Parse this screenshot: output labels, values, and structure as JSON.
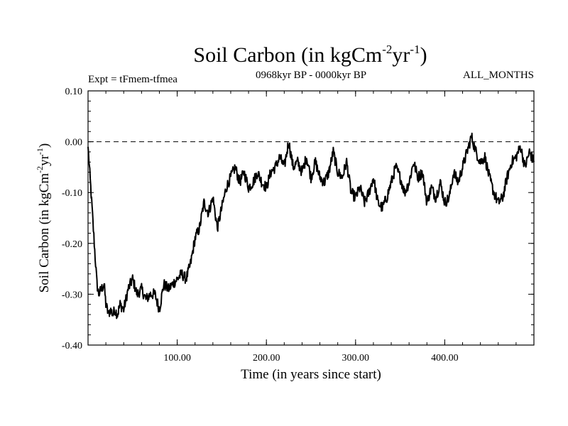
{
  "chart_data": {
    "type": "line",
    "title": {
      "main": "Soil Carbon (in kgCm",
      "exp1": "-2",
      "mid": "yr",
      "exp2": "-1",
      "close": ")"
    },
    "subtitle_left": "Expt = tFmem-tfmea",
    "subtitle_center": "0968kyr BP - 0000kyr BP",
    "subtitle_right": "ALL_MONTHS",
    "xlabel": "Time (in years since start)",
    "ylabel": {
      "main": "Soil Carbon (in kgCm",
      "exp1": "-2",
      "mid": "yr",
      "exp2": "-1",
      "close": ")"
    },
    "xlim": [
      0,
      500
    ],
    "ylim": [
      -0.4,
      0.1
    ],
    "x_ticks": [
      100,
      200,
      300,
      400
    ],
    "x_tick_labels": [
      "100.00",
      "200.00",
      "300.00",
      "400.00"
    ],
    "y_ticks": [
      -0.4,
      -0.3,
      -0.2,
      -0.1,
      0.0,
      0.1
    ],
    "y_tick_labels": [
      "-0.40",
      "-0.30",
      "-0.20",
      "-0.10",
      "0.00",
      "0.10"
    ],
    "reference_line": {
      "y": 0.0,
      "style": "dashed"
    },
    "series": [
      {
        "name": "Soil Carbon",
        "color": "#000000",
        "x": [
          0,
          3,
          7,
          10,
          12,
          15,
          18,
          20,
          23,
          25,
          28,
          30,
          33,
          36,
          40,
          45,
          50,
          55,
          60,
          65,
          70,
          75,
          80,
          85,
          90,
          95,
          100,
          105,
          110,
          115,
          120,
          125,
          130,
          135,
          140,
          145,
          150,
          155,
          160,
          165,
          170,
          175,
          180,
          185,
          190,
          195,
          200,
          205,
          210,
          215,
          220,
          225,
          230,
          235,
          240,
          245,
          250,
          255,
          260,
          265,
          270,
          275,
          280,
          285,
          290,
          295,
          300,
          305,
          310,
          315,
          320,
          325,
          330,
          335,
          340,
          345,
          350,
          355,
          360,
          365,
          370,
          375,
          380,
          385,
          390,
          395,
          400,
          405,
          410,
          415,
          420,
          425,
          430,
          435,
          440,
          445,
          450,
          455,
          460,
          465,
          470,
          475,
          480,
          485,
          490,
          495,
          500
        ],
        "values": [
          -0.01,
          -0.09,
          -0.2,
          -0.28,
          -0.3,
          -0.29,
          -0.28,
          -0.32,
          -0.34,
          -0.33,
          -0.34,
          -0.33,
          -0.34,
          -0.32,
          -0.33,
          -0.29,
          -0.27,
          -0.3,
          -0.29,
          -0.31,
          -0.3,
          -0.3,
          -0.33,
          -0.28,
          -0.29,
          -0.28,
          -0.27,
          -0.26,
          -0.27,
          -0.24,
          -0.19,
          -0.17,
          -0.12,
          -0.14,
          -0.11,
          -0.17,
          -0.13,
          -0.09,
          -0.07,
          -0.05,
          -0.08,
          -0.06,
          -0.09,
          -0.08,
          -0.06,
          -0.08,
          -0.09,
          -0.06,
          -0.05,
          -0.03,
          -0.05,
          0.0,
          -0.05,
          -0.04,
          -0.06,
          -0.03,
          -0.07,
          -0.04,
          -0.07,
          -0.08,
          -0.06,
          -0.02,
          -0.06,
          -0.07,
          -0.04,
          -0.1,
          -0.11,
          -0.09,
          -0.12,
          -0.1,
          -0.07,
          -0.12,
          -0.13,
          -0.11,
          -0.08,
          -0.05,
          -0.07,
          -0.1,
          -0.08,
          -0.04,
          -0.07,
          -0.06,
          -0.12,
          -0.09,
          -0.11,
          -0.08,
          -0.12,
          -0.11,
          -0.06,
          -0.08,
          -0.05,
          -0.02,
          0.01,
          -0.02,
          -0.04,
          -0.03,
          -0.07,
          -0.1,
          -0.12,
          -0.11,
          -0.07,
          -0.04,
          -0.03,
          -0.01,
          -0.05,
          -0.02,
          -0.04
        ]
      }
    ]
  }
}
